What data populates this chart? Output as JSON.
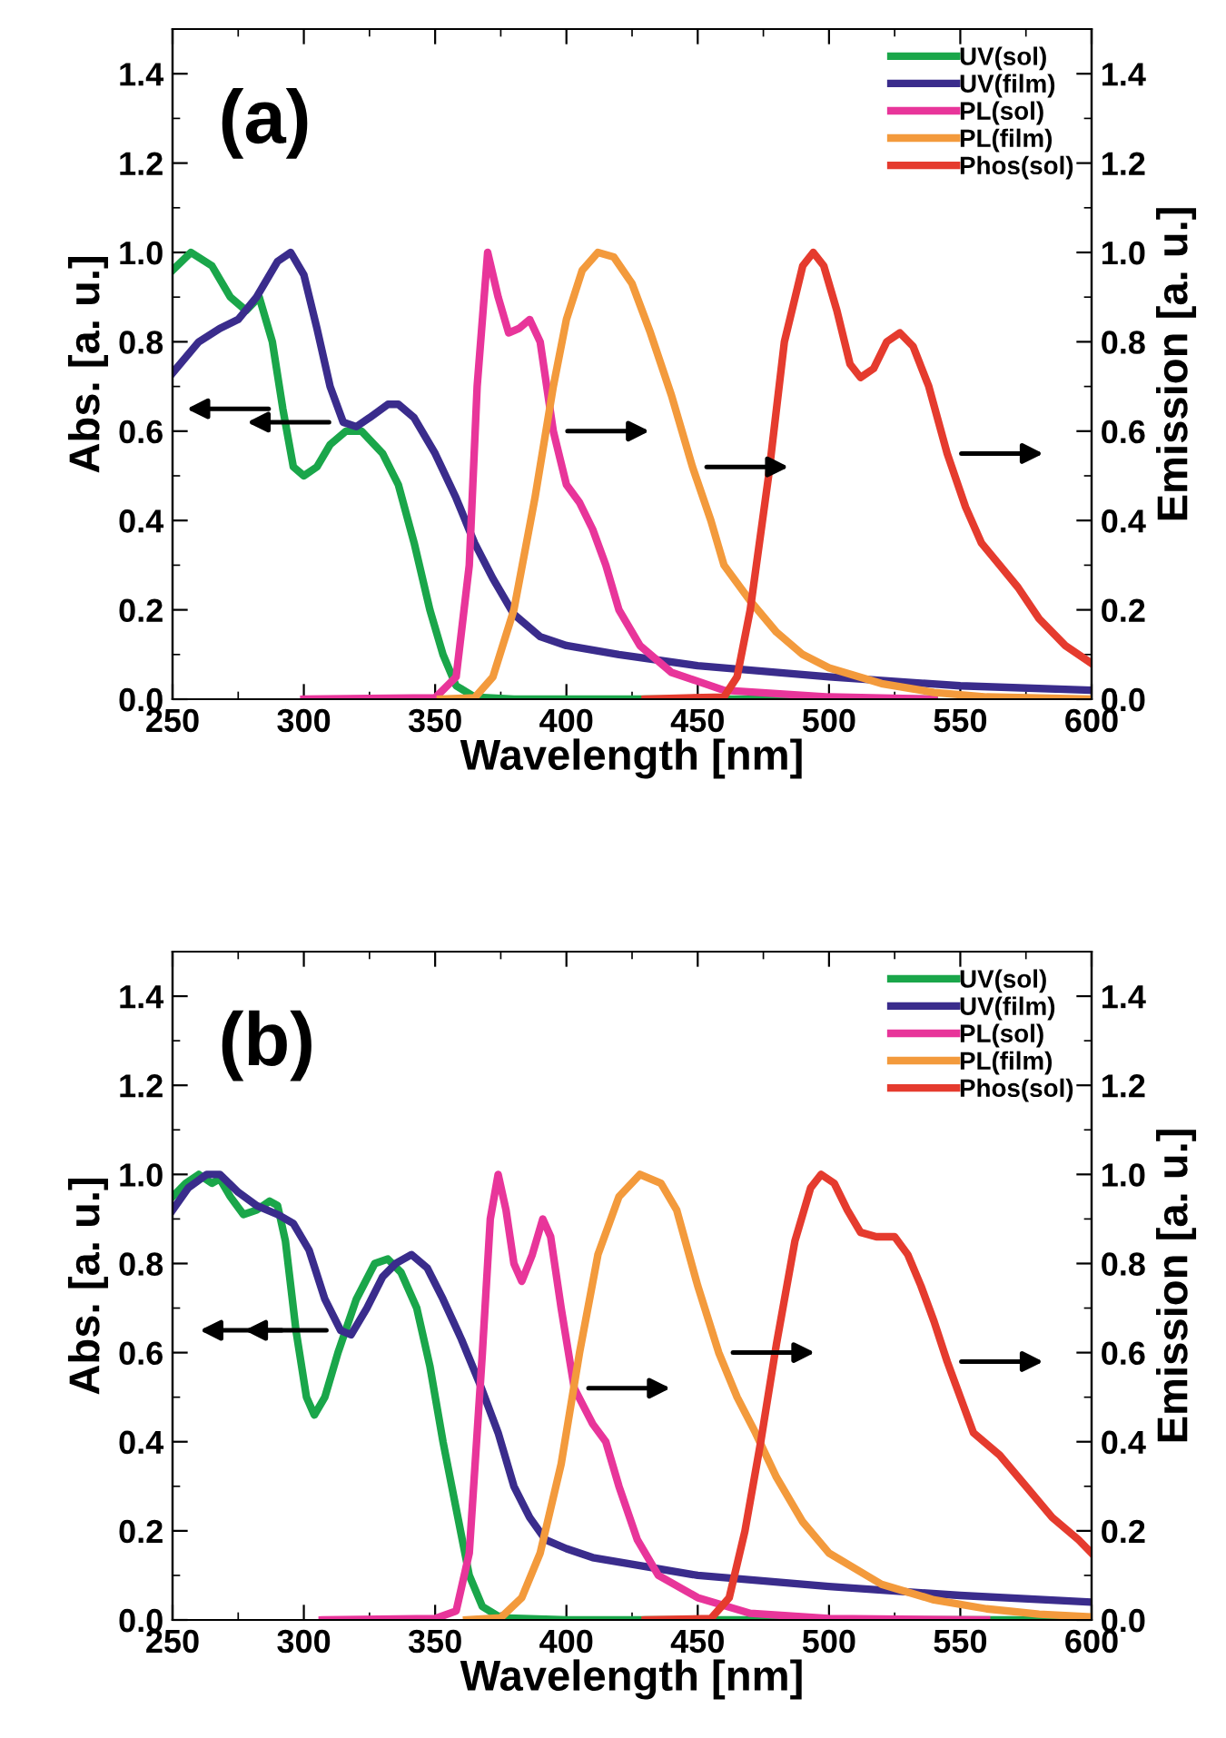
{
  "chart_data": [
    {
      "type": "line",
      "title": "(a)",
      "xlabel": "Wavelength [nm]",
      "ylabel": "Abs. [a. u.]",
      "y2label": "Emission [a. u.]",
      "xlim": [
        250,
        600
      ],
      "xticks": [
        250,
        300,
        350,
        400,
        450,
        500,
        550,
        600
      ],
      "ylim": [
        0,
        1.5
      ],
      "yticks": [
        {
          "value": 0,
          "label": "0.0"
        },
        {
          "value": 0.2,
          "label": "0.2"
        },
        {
          "value": 0.4,
          "label": "0.4"
        },
        {
          "value": 0.6,
          "label": "0.6"
        },
        {
          "value": 0.8,
          "label": "0.8"
        },
        {
          "value": 1,
          "label": "1.0"
        },
        {
          "value": 1.2,
          "label": "1.2"
        },
        {
          "value": 1.4,
          "label": "1.4"
        }
      ],
      "y2lim": [
        0,
        1.5
      ],
      "y2ticks": [
        {
          "value": 0,
          "label": "0.0"
        },
        {
          "value": 0.2,
          "label": "0.2"
        },
        {
          "value": 0.4,
          "label": "0.4"
        },
        {
          "value": 0.6,
          "label": "0.6"
        },
        {
          "value": 0.8,
          "label": "0.8"
        },
        {
          "value": 1,
          "label": "1.0"
        },
        {
          "value": 1.2,
          "label": "1.2"
        },
        {
          "value": 1.4,
          "label": "1.4"
        }
      ],
      "legend": "top right",
      "grid": false,
      "series": [
        {
          "name": "UV(sol)",
          "color": "#1aa64a",
          "x": [
            250,
            257,
            265,
            272,
            278,
            283,
            288,
            292,
            296,
            300,
            305,
            310,
            316,
            322,
            330,
            336,
            342,
            348,
            353,
            358,
            365,
            380,
            450,
            540
          ],
          "values": [
            0.96,
            1.0,
            0.97,
            0.9,
            0.87,
            0.9,
            0.8,
            0.65,
            0.52,
            0.5,
            0.52,
            0.57,
            0.6,
            0.6,
            0.55,
            0.48,
            0.35,
            0.2,
            0.1,
            0.03,
            0.005,
            0,
            0,
            0
          ]
        },
        {
          "name": "UV(film)",
          "color": "#3a2c8c",
          "x": [
            250,
            260,
            268,
            275,
            282,
            290,
            295,
            300,
            305,
            310,
            315,
            320,
            325,
            332,
            336,
            342,
            350,
            358,
            365,
            372,
            380,
            390,
            400,
            420,
            450,
            500,
            550,
            600
          ],
          "values": [
            0.73,
            0.8,
            0.83,
            0.85,
            0.9,
            0.98,
            1.0,
            0.95,
            0.83,
            0.7,
            0.62,
            0.61,
            0.63,
            0.66,
            0.66,
            0.63,
            0.55,
            0.45,
            0.35,
            0.27,
            0.19,
            0.14,
            0.12,
            0.1,
            0.075,
            0.05,
            0.03,
            0.02
          ]
        },
        {
          "name": "PL(sol)",
          "color": "#e8359a",
          "axis": "y2",
          "x": [
            300,
            350,
            358,
            363,
            366,
            370,
            374,
            378,
            382,
            386,
            390,
            395,
            400,
            405,
            410,
            415,
            420,
            428,
            440,
            460,
            500,
            540
          ],
          "values": [
            0,
            0.003,
            0.05,
            0.3,
            0.7,
            1.0,
            0.9,
            0.82,
            0.83,
            0.85,
            0.8,
            0.6,
            0.48,
            0.44,
            0.38,
            0.3,
            0.2,
            0.12,
            0.06,
            0.02,
            0.005,
            0
          ]
        },
        {
          "name": "PL(film)",
          "color": "#f39a3c",
          "axis": "y2",
          "x": [
            352,
            365,
            372,
            380,
            388,
            395,
            400,
            406,
            412,
            418,
            425,
            432,
            440,
            448,
            455,
            460,
            470,
            480,
            490,
            500,
            520,
            540,
            560,
            600
          ],
          "values": [
            0,
            0.003,
            0.05,
            0.2,
            0.45,
            0.7,
            0.85,
            0.96,
            1.0,
            0.99,
            0.93,
            0.82,
            0.68,
            0.52,
            0.4,
            0.3,
            0.22,
            0.15,
            0.1,
            0.07,
            0.035,
            0.015,
            0.005,
            0
          ]
        },
        {
          "name": "Phos(sol)",
          "color": "#e53b2e",
          "axis": "y2",
          "x": [
            430,
            460,
            465,
            470,
            477,
            483,
            490,
            494,
            498,
            503,
            508,
            512,
            517,
            522,
            527,
            532,
            538,
            545,
            552,
            558,
            565,
            572,
            580,
            590,
            600
          ],
          "values": [
            0,
            0.005,
            0.05,
            0.2,
            0.5,
            0.8,
            0.97,
            1.0,
            0.97,
            0.87,
            0.75,
            0.72,
            0.74,
            0.8,
            0.82,
            0.79,
            0.7,
            0.55,
            0.43,
            0.35,
            0.3,
            0.25,
            0.18,
            0.12,
            0.08
          ]
        }
      ]
    },
    {
      "type": "line",
      "title": "(b)",
      "xlabel": "Wavelength [nm]",
      "ylabel": "Abs. [a. u.]",
      "y2label": "Emission [a. u.]",
      "xlim": [
        250,
        600
      ],
      "xticks": [
        250,
        300,
        350,
        400,
        450,
        500,
        550,
        600
      ],
      "ylim": [
        0,
        1.5
      ],
      "yticks": [
        {
          "value": 0,
          "label": "0.0"
        },
        {
          "value": 0.2,
          "label": "0.2"
        },
        {
          "value": 0.4,
          "label": "0.4"
        },
        {
          "value": 0.6,
          "label": "0.6"
        },
        {
          "value": 0.8,
          "label": "0.8"
        },
        {
          "value": 1,
          "label": "1.0"
        },
        {
          "value": 1.2,
          "label": "1.2"
        },
        {
          "value": 1.4,
          "label": "1.4"
        }
      ],
      "y2lim": [
        0,
        1.5
      ],
      "y2ticks": [
        {
          "value": 0,
          "label": "0.0"
        },
        {
          "value": 0.2,
          "label": "0.2"
        },
        {
          "value": 0.4,
          "label": "0.4"
        },
        {
          "value": 0.6,
          "label": "0.6"
        },
        {
          "value": 0.8,
          "label": "0.8"
        },
        {
          "value": 1,
          "label": "1.0"
        },
        {
          "value": 1.2,
          "label": "1.2"
        },
        {
          "value": 1.4,
          "label": "1.4"
        }
      ],
      "legend": "top right",
      "grid": false,
      "series": [
        {
          "name": "UV(sol)",
          "color": "#1aa64a",
          "x": [
            250,
            255,
            260,
            265,
            268,
            272,
            277,
            282,
            287,
            290,
            293,
            297,
            301,
            304,
            308,
            313,
            320,
            327,
            332,
            337,
            343,
            348,
            353,
            358,
            363,
            368,
            375,
            400,
            600
          ],
          "values": [
            0.95,
            0.98,
            1.0,
            0.98,
            0.99,
            0.95,
            0.91,
            0.92,
            0.94,
            0.93,
            0.85,
            0.65,
            0.5,
            0.46,
            0.5,
            0.6,
            0.72,
            0.8,
            0.81,
            0.78,
            0.7,
            0.57,
            0.4,
            0.25,
            0.1,
            0.03,
            0.005,
            0,
            0
          ]
        },
        {
          "name": "UV(film)",
          "color": "#3a2c8c",
          "x": [
            250,
            256,
            263,
            268,
            275,
            282,
            290,
            296,
            302,
            308,
            314,
            318,
            324,
            330,
            335,
            341,
            347,
            353,
            360,
            367,
            374,
            380,
            386,
            392,
            400,
            410,
            430,
            450,
            500,
            550,
            600
          ],
          "values": [
            0.92,
            0.97,
            1.0,
            1.0,
            0.96,
            0.93,
            0.91,
            0.89,
            0.83,
            0.72,
            0.65,
            0.64,
            0.7,
            0.77,
            0.8,
            0.82,
            0.79,
            0.72,
            0.63,
            0.53,
            0.42,
            0.3,
            0.23,
            0.18,
            0.16,
            0.14,
            0.12,
            0.1,
            0.075,
            0.055,
            0.04
          ]
        },
        {
          "name": "PL(sol)",
          "color": "#e8359a",
          "axis": "y2",
          "x": [
            307,
            350,
            358,
            363,
            368,
            371,
            374,
            377,
            380,
            383,
            387,
            391,
            394,
            398,
            403,
            410,
            415,
            420,
            427,
            435,
            450,
            470,
            500,
            560
          ],
          "values": [
            0,
            0.003,
            0.02,
            0.15,
            0.6,
            0.9,
            1.0,
            0.92,
            0.8,
            0.76,
            0.82,
            0.9,
            0.86,
            0.7,
            0.52,
            0.44,
            0.4,
            0.3,
            0.18,
            0.1,
            0.05,
            0.015,
            0.003,
            0
          ]
        },
        {
          "name": "PL(film)",
          "color": "#f39a3c",
          "axis": "y2",
          "x": [
            362,
            375,
            383,
            390,
            398,
            405,
            412,
            420,
            428,
            436,
            442,
            450,
            458,
            465,
            472,
            480,
            490,
            500,
            520,
            540,
            560,
            580,
            600
          ],
          "values": [
            0,
            0.005,
            0.05,
            0.15,
            0.35,
            0.6,
            0.82,
            0.95,
            1.0,
            0.98,
            0.92,
            0.75,
            0.6,
            0.5,
            0.42,
            0.32,
            0.22,
            0.15,
            0.08,
            0.045,
            0.025,
            0.013,
            0.007
          ]
        },
        {
          "name": "Phos(sol)",
          "color": "#e53b2e",
          "axis": "y2",
          "x": [
            430,
            455,
            462,
            468,
            474,
            480,
            487,
            493,
            497,
            502,
            507,
            512,
            518,
            525,
            530,
            535,
            540,
            545,
            550,
            555,
            565,
            575,
            585,
            595,
            600
          ],
          "values": [
            0,
            0.003,
            0.05,
            0.2,
            0.4,
            0.62,
            0.85,
            0.97,
            1.0,
            0.98,
            0.92,
            0.87,
            0.86,
            0.86,
            0.82,
            0.75,
            0.67,
            0.58,
            0.5,
            0.42,
            0.37,
            0.3,
            0.23,
            0.18,
            0.15
          ]
        }
      ]
    }
  ]
}
